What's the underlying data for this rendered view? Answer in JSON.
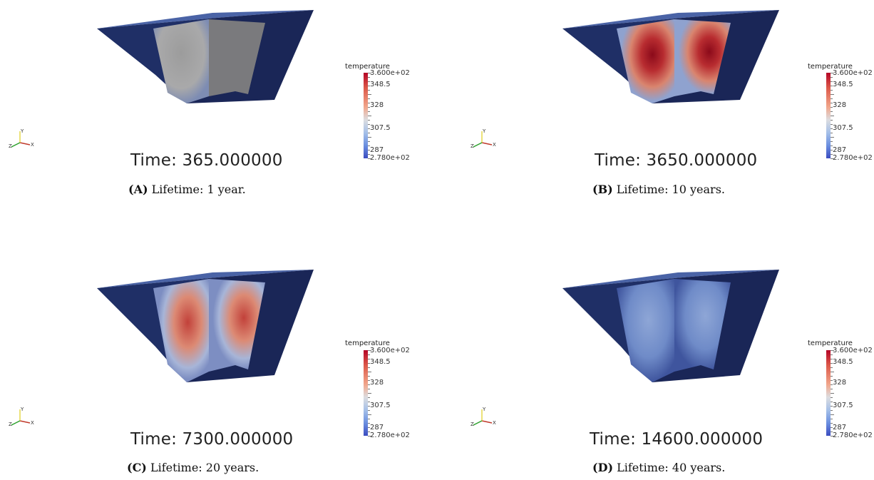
{
  "panels": [
    {
      "id": "A",
      "time_text": "Time: 365.000000",
      "caption_tag": "(A)",
      "caption_text": " Lifetime: 1 year.",
      "hotspot": {
        "peak_color": "#9a9a9a",
        "mid_color": "#aaaaaa",
        "intensity": "uniform-gray"
      }
    },
    {
      "id": "B",
      "time_text": "Time: 3650.000000",
      "caption_tag": "(B)",
      "caption_text": " Lifetime: 10 years.",
      "hotspot": {
        "peak_color": "#8e0a1a",
        "mid_color": "#d5504a",
        "intensity": "very-high"
      }
    },
    {
      "id": "C",
      "time_text": "Time: 7300.000000",
      "caption_tag": "(C)",
      "caption_text": " Lifetime: 20 years.",
      "hotspot": {
        "peak_color": "#c4433a",
        "mid_color": "#e3917c",
        "intensity": "high"
      }
    },
    {
      "id": "D",
      "time_text": "Time: 14600.000000",
      "caption_tag": "(D)",
      "caption_text": " Lifetime: 40 years.",
      "hotspot": {
        "peak_color": "#8ea6d6",
        "mid_color": "#7390cc",
        "intensity": "low"
      }
    }
  ],
  "colorbar": {
    "title": "temperature",
    "max_label": "3.600e+02",
    "min_label": "2.780e+02",
    "tick_labels": [
      "348.5",
      "328",
      "307.5",
      "287"
    ],
    "colors": {
      "hot": "#b40426",
      "neutral": "#dcdde0",
      "cold": "#3b4cc0"
    }
  },
  "axes_gizmo": {
    "x": "X",
    "y": "Y",
    "z": "Z"
  },
  "colors": {
    "box_top": "#4a63a6",
    "box_side": "#1f2f66",
    "box_side_dark": "#1a2657"
  }
}
